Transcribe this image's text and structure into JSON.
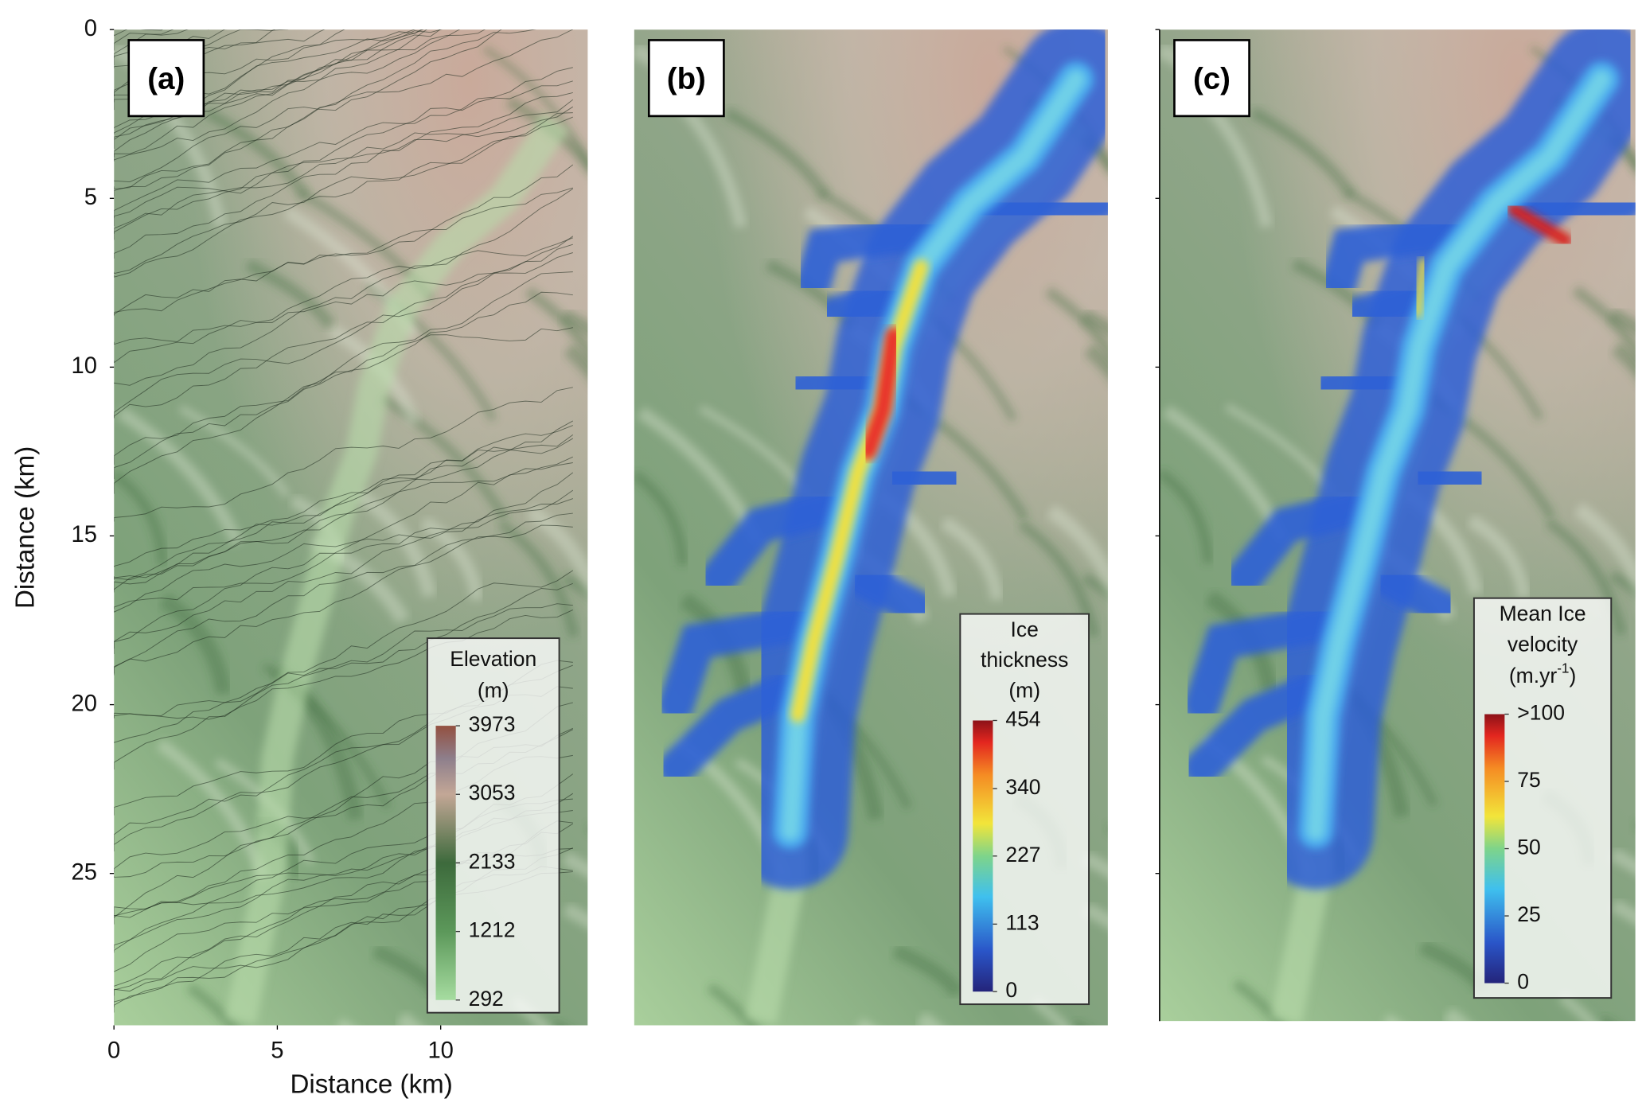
{
  "axes": {
    "y_label": "Distance (km)",
    "x_label": "Distance (km)",
    "ylim": [
      0,
      29.5
    ],
    "yticks": [
      0,
      5,
      10,
      15,
      20,
      25
    ],
    "xlim": [
      0,
      14.5
    ],
    "xticks": [
      0,
      5,
      10
    ]
  },
  "panels": [
    {
      "label": "(a)",
      "legend": {
        "title": [
          "Elevation",
          "(m)"
        ],
        "ticks": [
          3973,
          3053,
          2133,
          1212,
          292
        ]
      }
    },
    {
      "label": "(b)",
      "legend": {
        "title": [
          "Ice",
          "thickness",
          "(m)"
        ],
        "ticks": [
          454,
          340,
          227,
          113,
          0
        ]
      }
    },
    {
      "label": "(c)",
      "legend": {
        "title": [
          "Mean Ice",
          "velocity"
        ],
        "unit": {
          "text": "(m.yr",
          "sup": "-1",
          "end": ")"
        },
        "ticks": [
          {
            "value": 100,
            "label": ">100"
          },
          75,
          50,
          25,
          0
        ]
      }
    }
  ]
}
